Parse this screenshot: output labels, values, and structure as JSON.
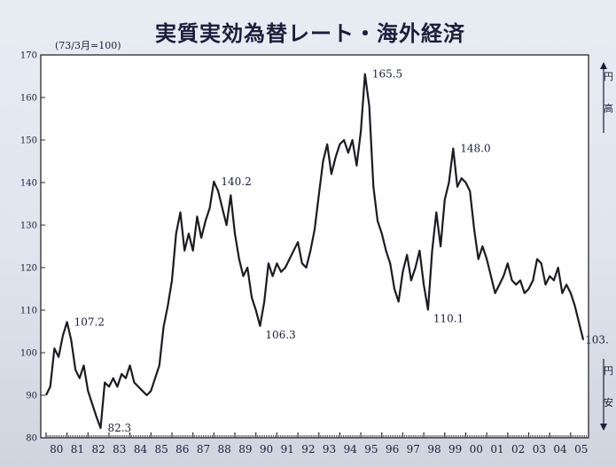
{
  "chart_data": {
    "type": "line",
    "title": "実質実効為替レート・海外経済",
    "subtitle": "(73/3月=100)",
    "xlabel": "",
    "ylabel": "",
    "ylim": [
      80,
      170
    ],
    "xlim": [
      1979.75,
      2005.85
    ],
    "yticks": [
      80,
      90,
      100,
      110,
      120,
      130,
      140,
      150,
      160,
      170
    ],
    "xticks": [
      {
        "label": "80",
        "x": 1980.5
      },
      {
        "label": "81",
        "x": 1981.5
      },
      {
        "label": "82",
        "x": 1982.5
      },
      {
        "label": "83",
        "x": 1983.5
      },
      {
        "label": "84",
        "x": 1984.5
      },
      {
        "label": "85",
        "x": 1985.5
      },
      {
        "label": "86",
        "x": 1986.5
      },
      {
        "label": "87",
        "x": 1987.5
      },
      {
        "label": "88",
        "x": 1988.5
      },
      {
        "label": "89",
        "x": 1989.5
      },
      {
        "label": "90",
        "x": 1990.5
      },
      {
        "label": "91",
        "x": 1991.5
      },
      {
        "label": "92",
        "x": 1992.5
      },
      {
        "label": "93",
        "x": 1993.5
      },
      {
        "label": "94",
        "x": 1994.5
      },
      {
        "label": "95",
        "x": 1995.5
      },
      {
        "label": "96",
        "x": 1996.5
      },
      {
        "label": "97",
        "x": 1997.5
      },
      {
        "label": "98",
        "x": 1998.5
      },
      {
        "label": "99",
        "x": 1999.5
      },
      {
        "label": "00",
        "x": 2000.5
      },
      {
        "label": "01",
        "x": 2001.5
      },
      {
        "label": "02",
        "x": 2002.5
      },
      {
        "label": "03",
        "x": 2003.5
      },
      {
        "label": "04",
        "x": 2004.5
      },
      {
        "label": "05",
        "x": 2005.5
      }
    ],
    "series": [
      {
        "color": "#1b1b22",
        "points": [
          [
            1980.0,
            90
          ],
          [
            1980.2,
            92
          ],
          [
            1980.4,
            101
          ],
          [
            1980.6,
            99
          ],
          [
            1980.8,
            104
          ],
          [
            1981.0,
            107.2
          ],
          [
            1981.2,
            103
          ],
          [
            1981.4,
            96
          ],
          [
            1981.6,
            94
          ],
          [
            1981.8,
            97
          ],
          [
            1982.0,
            91
          ],
          [
            1982.2,
            88
          ],
          [
            1982.4,
            85
          ],
          [
            1982.6,
            82.3
          ],
          [
            1982.8,
            93
          ],
          [
            1983.0,
            92
          ],
          [
            1983.2,
            94
          ],
          [
            1983.4,
            92
          ],
          [
            1983.6,
            95
          ],
          [
            1983.8,
            94
          ],
          [
            1984.0,
            97
          ],
          [
            1984.2,
            93
          ],
          [
            1984.4,
            92
          ],
          [
            1984.6,
            91
          ],
          [
            1984.8,
            90
          ],
          [
            1985.0,
            91
          ],
          [
            1985.2,
            94
          ],
          [
            1985.4,
            97
          ],
          [
            1985.6,
            106
          ],
          [
            1985.8,
            111
          ],
          [
            1986.0,
            117
          ],
          [
            1986.2,
            128
          ],
          [
            1986.4,
            133
          ],
          [
            1986.6,
            124
          ],
          [
            1986.8,
            128
          ],
          [
            1987.0,
            124
          ],
          [
            1987.2,
            132
          ],
          [
            1987.4,
            127
          ],
          [
            1987.6,
            131
          ],
          [
            1987.8,
            134
          ],
          [
            1988.0,
            140.2
          ],
          [
            1988.2,
            138
          ],
          [
            1988.4,
            134
          ],
          [
            1988.6,
            130
          ],
          [
            1988.8,
            137
          ],
          [
            1989.0,
            128
          ],
          [
            1989.2,
            122
          ],
          [
            1989.4,
            118
          ],
          [
            1989.6,
            120
          ],
          [
            1989.8,
            113
          ],
          [
            1990.0,
            110
          ],
          [
            1990.2,
            106.3
          ],
          [
            1990.4,
            112
          ],
          [
            1990.6,
            121
          ],
          [
            1990.8,
            118
          ],
          [
            1991.0,
            121
          ],
          [
            1991.2,
            119
          ],
          [
            1991.4,
            120
          ],
          [
            1991.6,
            122
          ],
          [
            1991.8,
            124
          ],
          [
            1992.0,
            126
          ],
          [
            1992.2,
            121
          ],
          [
            1992.4,
            120
          ],
          [
            1992.6,
            124
          ],
          [
            1992.8,
            129
          ],
          [
            1993.0,
            137
          ],
          [
            1993.2,
            145
          ],
          [
            1993.4,
            149
          ],
          [
            1993.6,
            142
          ],
          [
            1993.8,
            146
          ],
          [
            1994.0,
            149
          ],
          [
            1994.2,
            150
          ],
          [
            1994.4,
            147
          ],
          [
            1994.6,
            150
          ],
          [
            1994.8,
            144
          ],
          [
            1995.0,
            152
          ],
          [
            1995.2,
            165.5
          ],
          [
            1995.4,
            158
          ],
          [
            1995.6,
            139
          ],
          [
            1995.8,
            131
          ],
          [
            1996.0,
            128
          ],
          [
            1996.2,
            124
          ],
          [
            1996.4,
            121
          ],
          [
            1996.6,
            115
          ],
          [
            1996.8,
            112
          ],
          [
            1997.0,
            119
          ],
          [
            1997.2,
            123
          ],
          [
            1997.4,
            117
          ],
          [
            1997.6,
            120
          ],
          [
            1997.8,
            124
          ],
          [
            1998.0,
            116
          ],
          [
            1998.2,
            110.1
          ],
          [
            1998.4,
            124
          ],
          [
            1998.6,
            133
          ],
          [
            1998.8,
            125
          ],
          [
            1999.0,
            136
          ],
          [
            1999.2,
            140
          ],
          [
            1999.4,
            148.0
          ],
          [
            1999.6,
            139
          ],
          [
            1999.8,
            141
          ],
          [
            2000.0,
            140
          ],
          [
            2000.2,
            138
          ],
          [
            2000.4,
            129
          ],
          [
            2000.6,
            122
          ],
          [
            2000.8,
            125
          ],
          [
            2001.0,
            122
          ],
          [
            2001.2,
            118
          ],
          [
            2001.4,
            114
          ],
          [
            2001.6,
            116
          ],
          [
            2001.8,
            118
          ],
          [
            2002.0,
            121
          ],
          [
            2002.2,
            117
          ],
          [
            2002.4,
            116
          ],
          [
            2002.6,
            117
          ],
          [
            2002.8,
            114
          ],
          [
            2003.0,
            115
          ],
          [
            2003.2,
            117
          ],
          [
            2003.4,
            122
          ],
          [
            2003.6,
            121
          ],
          [
            2003.8,
            116
          ],
          [
            2004.0,
            118
          ],
          [
            2004.2,
            117
          ],
          [
            2004.4,
            120
          ],
          [
            2004.6,
            114
          ],
          [
            2004.8,
            116
          ],
          [
            2005.0,
            114
          ],
          [
            2005.2,
            111
          ],
          [
            2005.4,
            107
          ],
          [
            2005.6,
            103
          ]
        ]
      }
    ],
    "annotations": [
      {
        "text": "107.2",
        "x": 1981.0,
        "y": 107.2,
        "side": "right"
      },
      {
        "text": "82.3",
        "x": 1982.6,
        "y": 82.3,
        "side": "right"
      },
      {
        "text": "140.2",
        "x": 1988.0,
        "y": 140.2,
        "side": "right"
      },
      {
        "text": "106.3",
        "x": 1990.2,
        "y": 106.3,
        "side": "below-right"
      },
      {
        "text": "165.5",
        "x": 1995.2,
        "y": 165.5,
        "side": "right"
      },
      {
        "text": "110.1",
        "x": 1998.2,
        "y": 110.1,
        "side": "below-right"
      },
      {
        "text": "148.0",
        "x": 1999.4,
        "y": 148.0,
        "side": "right"
      },
      {
        "text": "103.",
        "x": 2005.6,
        "y": 103,
        "side": "right-cut"
      }
    ],
    "grid": false,
    "legend": "none"
  },
  "side_labels": {
    "top": [
      "円",
      "高"
    ],
    "bottom": [
      "円",
      "安"
    ]
  }
}
